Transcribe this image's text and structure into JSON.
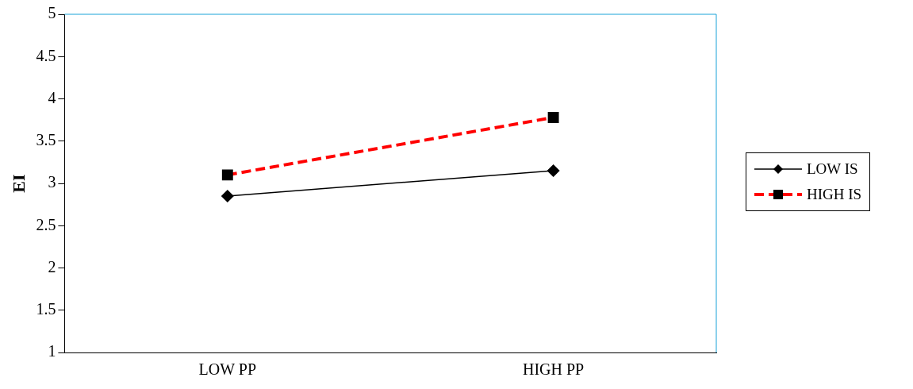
{
  "chart_data": {
    "type": "line",
    "ylabel": "EI",
    "categories": [
      "LOW PP",
      "HIGH PP"
    ],
    "series": [
      {
        "name": "LOW IS",
        "color": "#000000",
        "values": [
          2.85,
          3.15
        ],
        "marker": "diamond",
        "line_style": "solid"
      },
      {
        "name": "HIGH IS",
        "color": "#ff0000",
        "values": [
          3.1,
          3.78
        ],
        "marker": "square",
        "line_style": "dashed"
      }
    ],
    "ylim": [
      1,
      5
    ],
    "yticks": [
      1,
      1.5,
      2,
      2.5,
      3,
      3.5,
      4,
      4.5,
      5
    ],
    "grid": false,
    "legend": "right"
  }
}
